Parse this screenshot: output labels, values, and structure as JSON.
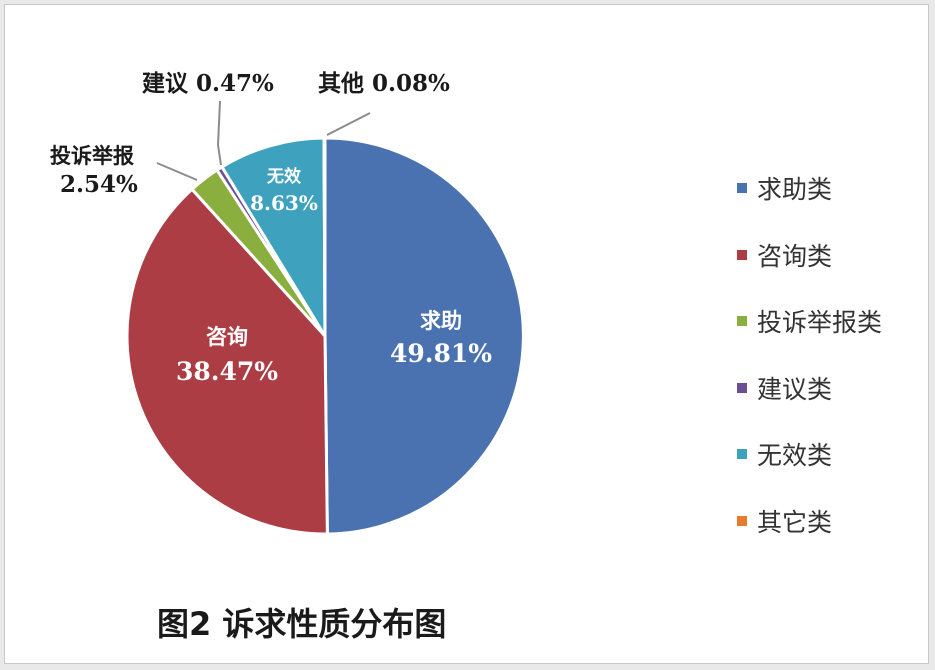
{
  "chart_data": {
    "type": "pie",
    "title": "图2  诉求性质分布图",
    "slices": [
      {
        "name": "求助",
        "value": 49.81,
        "label_name": "求助",
        "label_value": "49.81%",
        "color": "#4a72b0"
      },
      {
        "name": "咨询",
        "value": 38.47,
        "label_name": "咨询",
        "label_value": "38.47%",
        "color": "#ac3d45"
      },
      {
        "name": "投诉举报",
        "value": 2.54,
        "label_name": "投诉举报",
        "label_value": "2.54%",
        "color": "#8aaf3f"
      },
      {
        "name": "建议",
        "value": 0.47,
        "label_name": "建议",
        "label_value": "0.47%",
        "color": "#6c4f93"
      },
      {
        "name": "无效",
        "value": 8.63,
        "label_name": "无效",
        "label_value": "8.63%",
        "color": "#3ea1bd"
      },
      {
        "name": "其他",
        "value": 0.08,
        "label_name": "其他",
        "label_value": "0.08%",
        "color": "#e67a2e"
      }
    ],
    "legend_position": "right",
    "legend": [
      {
        "label": "求助类",
        "color": "#4a72b0"
      },
      {
        "label": "咨询类",
        "color": "#ac3d45"
      },
      {
        "label": "投诉举报类",
        "color": "#8aaf3f"
      },
      {
        "label": "建议类",
        "color": "#6c4f93"
      },
      {
        "label": "无效类",
        "color": "#3ea1bd"
      },
      {
        "label": "其它类",
        "color": "#e67a2e"
      }
    ]
  }
}
